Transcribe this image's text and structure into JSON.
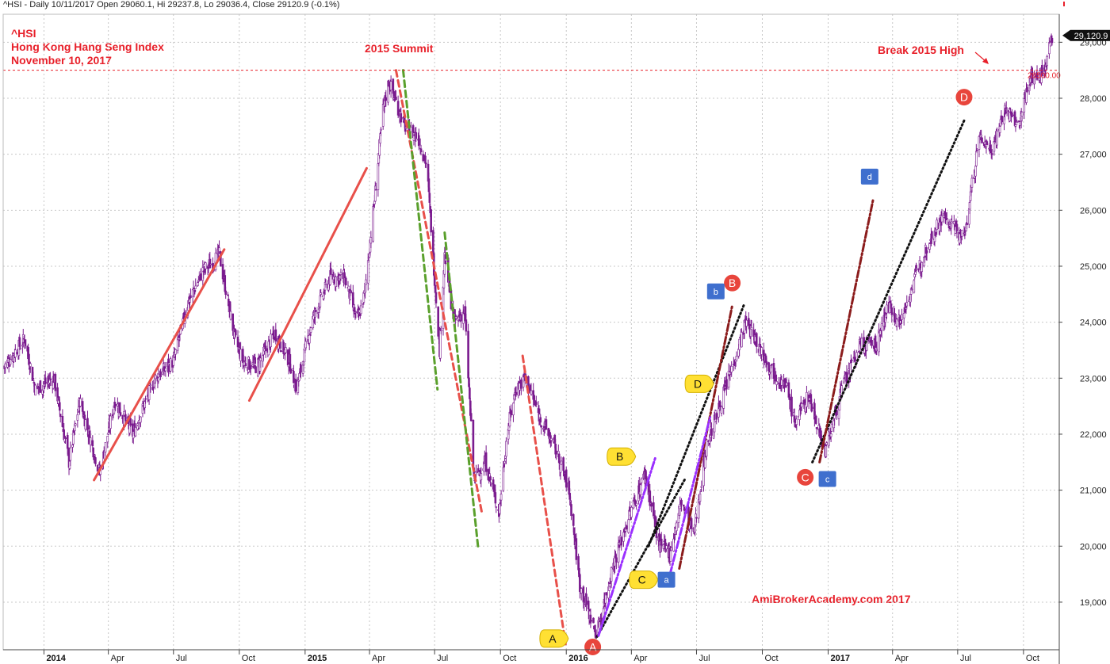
{
  "header": {
    "title": "^HSI - Daily 10/11/2017 Open 29060.1, Hi 29237.8, Lo 29036.4, Close 29120.9 (-0.1%)"
  },
  "annotations": {
    "symbol": "^HSI",
    "name": "Hong Kong Hang Seng Index",
    "date": "November 10, 2017",
    "summit": "2015 Summit",
    "break_high": "Break 2015 High",
    "watermark": "AmiBrokerAcademy.com  2017"
  },
  "colors": {
    "annotation": "#e8202a",
    "candle": "#7a1a8e",
    "candle_up": "#ffffff",
    "red_trend": "#e8504a",
    "green_trend": "#5aa02c",
    "black_trend": "#111111",
    "maroon_trend": "#8b1c1c",
    "violet_trend": "#9b30ff",
    "label_circle": "#e8453c",
    "label_bubble": "#ffe033",
    "label_square": "#3f6fce"
  },
  "chart_data": {
    "type": "candlestick",
    "ylim": [
      18150,
      29500
    ],
    "yticks": [
      19000,
      20000,
      21000,
      22000,
      23000,
      24000,
      25000,
      26000,
      27000,
      28000,
      29000
    ],
    "ytick_labels": [
      "19,000",
      "20,000",
      "21,000",
      "22,000",
      "23,000",
      "24,000",
      "25,000",
      "26,000",
      "27,000",
      "28,000",
      "29,000"
    ],
    "x_start": "2013-11-05",
    "x_end": "2017-11-20",
    "xticks": [
      {
        "date": "2014-01-01",
        "label": "2014",
        "major": true
      },
      {
        "date": "2014-04-01",
        "label": "Apr",
        "major": false
      },
      {
        "date": "2014-07-01",
        "label": "Jul",
        "major": false
      },
      {
        "date": "2014-10-01",
        "label": "Oct",
        "major": false
      },
      {
        "date": "2015-01-01",
        "label": "2015",
        "major": true
      },
      {
        "date": "2015-04-01",
        "label": "Apr",
        "major": false
      },
      {
        "date": "2015-07-01",
        "label": "Jul",
        "major": false
      },
      {
        "date": "2015-10-01",
        "label": "Oct",
        "major": false
      },
      {
        "date": "2016-01-01",
        "label": "2016",
        "major": true
      },
      {
        "date": "2016-04-01",
        "label": "Apr",
        "major": false
      },
      {
        "date": "2016-07-01",
        "label": "Jul",
        "major": false
      },
      {
        "date": "2016-10-01",
        "label": "Oct",
        "major": false
      },
      {
        "date": "2017-01-01",
        "label": "2017",
        "major": true
      },
      {
        "date": "2017-04-01",
        "label": "Apr",
        "major": false
      },
      {
        "date": "2017-07-01",
        "label": "Jul",
        "major": false
      },
      {
        "date": "2017-10-01",
        "label": "Oct",
        "major": false
      }
    ],
    "price_path": [
      [
        "2013-11-06",
        23200
      ],
      [
        "2013-12-05",
        23700
      ],
      [
        "2013-12-20",
        22800
      ],
      [
        "2014-01-15",
        23000
      ],
      [
        "2014-02-05",
        21500
      ],
      [
        "2014-02-20",
        22600
      ],
      [
        "2014-03-20",
        21300
      ],
      [
        "2014-04-10",
        22600
      ],
      [
        "2014-05-05",
        22000
      ],
      [
        "2014-06-05",
        23000
      ],
      [
        "2014-07-01",
        23300
      ],
      [
        "2014-07-20",
        24300
      ],
      [
        "2014-08-10",
        24900
      ],
      [
        "2014-09-03",
        25200
      ],
      [
        "2014-09-25",
        23700
      ],
      [
        "2014-10-06",
        23300
      ],
      [
        "2014-10-25",
        23200
      ],
      [
        "2014-11-20",
        23800
      ],
      [
        "2014-12-10",
        23300
      ],
      [
        "2014-12-20",
        22800
      ],
      [
        "2015-01-10",
        24000
      ],
      [
        "2015-02-05",
        24800
      ],
      [
        "2015-02-25",
        24800
      ],
      [
        "2015-03-15",
        24000
      ],
      [
        "2015-03-25",
        24500
      ],
      [
        "2015-04-08",
        26200
      ],
      [
        "2015-04-20",
        27800
      ],
      [
        "2015-04-28",
        28300
      ],
      [
        "2015-05-20",
        27500
      ],
      [
        "2015-06-08",
        27300
      ],
      [
        "2015-06-20",
        26800
      ],
      [
        "2015-07-08",
        23500
      ],
      [
        "2015-07-15",
        25200
      ],
      [
        "2015-07-28",
        24000
      ],
      [
        "2015-08-12",
        24200
      ],
      [
        "2015-08-25",
        21200
      ],
      [
        "2015-09-10",
        21500
      ],
      [
        "2015-09-29",
        20600
      ],
      [
        "2015-10-10",
        22000
      ],
      [
        "2015-10-22",
        22800
      ],
      [
        "2015-11-05",
        23000
      ],
      [
        "2015-11-25",
        22300
      ],
      [
        "2015-12-15",
        21800
      ],
      [
        "2016-01-05",
        21000
      ],
      [
        "2016-01-20",
        19300
      ],
      [
        "2016-02-12",
        18400
      ],
      [
        "2016-03-05",
        19600
      ],
      [
        "2016-03-25",
        20400
      ],
      [
        "2016-04-20",
        21300
      ],
      [
        "2016-05-10",
        20000
      ],
      [
        "2016-05-25",
        19900
      ],
      [
        "2016-06-10",
        20800
      ],
      [
        "2016-06-27",
        20200
      ],
      [
        "2016-07-15",
        21800
      ],
      [
        "2016-08-10",
        22800
      ],
      [
        "2016-09-08",
        24000
      ],
      [
        "2016-09-25",
        23600
      ],
      [
        "2016-10-12",
        23200
      ],
      [
        "2016-11-05",
        22800
      ],
      [
        "2016-11-15",
        22200
      ],
      [
        "2016-12-05",
        22700
      ],
      [
        "2016-12-28",
        21700
      ],
      [
        "2017-01-20",
        22800
      ],
      [
        "2017-02-15",
        23600
      ],
      [
        "2017-03-10",
        23600
      ],
      [
        "2017-03-25",
        24300
      ],
      [
        "2017-04-12",
        24000
      ],
      [
        "2017-04-30",
        24700
      ],
      [
        "2017-05-20",
        25400
      ],
      [
        "2017-06-10",
        25900
      ],
      [
        "2017-06-25",
        25700
      ],
      [
        "2017-07-10",
        25500
      ],
      [
        "2017-07-31",
        27300
      ],
      [
        "2017-08-18",
        27100
      ],
      [
        "2017-09-05",
        27800
      ],
      [
        "2017-09-25",
        27500
      ],
      [
        "2017-10-10",
        28400
      ],
      [
        "2017-10-25",
        28400
      ],
      [
        "2017-11-03",
        28700
      ],
      [
        "2017-11-10",
        29120
      ]
    ],
    "last_close": {
      "value": 29120.9,
      "label": "29,120.9"
    },
    "reference_line": {
      "value": 28500,
      "label": "28500.00",
      "color": "#e8202a"
    },
    "trendlines": [
      {
        "color": "red_trend",
        "dash": "solid",
        "from": [
          "2014-03-12",
          21180
        ],
        "to": [
          "2014-09-10",
          25300
        ]
      },
      {
        "color": "red_trend",
        "dash": "solid",
        "from": [
          "2014-10-15",
          22600
        ],
        "to": [
          "2015-03-28",
          26750
        ]
      },
      {
        "color": "red_trend",
        "dash": "dashed",
        "from": [
          "2015-05-08",
          28500
        ],
        "to": [
          "2015-09-05",
          20600
        ]
      },
      {
        "color": "red_trend",
        "dash": "dashed",
        "from": [
          "2015-11-01",
          23400
        ],
        "to": [
          "2015-12-31",
          18250
        ]
      },
      {
        "color": "green_trend",
        "dash": "dashed",
        "from": [
          "2015-05-18",
          28500
        ],
        "to": [
          "2015-07-05",
          22800
        ]
      },
      {
        "color": "green_trend",
        "dash": "dashed",
        "from": [
          "2015-07-15",
          25600
        ],
        "to": [
          "2015-08-31",
          19950
        ]
      },
      {
        "color": "black_trend",
        "dash": "dotted",
        "from": [
          "2016-02-05",
          18200
        ],
        "to": [
          "2016-06-15",
          21200
        ]
      },
      {
        "color": "black_trend",
        "dash": "dotted",
        "from": [
          "2016-04-25",
          20000
        ],
        "to": [
          "2016-09-05",
          24300
        ]
      },
      {
        "color": "black_trend",
        "dash": "dotted",
        "from": [
          "2016-12-10",
          21500
        ],
        "to": [
          "2017-07-10",
          27600
        ]
      },
      {
        "color": "maroon_trend",
        "dash": "dashdot",
        "from": [
          "2016-06-07",
          19600
        ],
        "to": [
          "2016-08-20",
          24300
        ]
      },
      {
        "color": "maroon_trend",
        "dash": "dashdot",
        "from": [
          "2016-12-20",
          21500
        ],
        "to": [
          "2017-03-05",
          26200
        ]
      },
      {
        "color": "violet_trend",
        "dash": "dashdot",
        "from": [
          "2016-02-15",
          18400
        ],
        "to": [
          "2016-05-05",
          21600
        ]
      },
      {
        "color": "violet_trend",
        "dash": "dashdot",
        "from": [
          "2016-05-25",
          19500
        ],
        "to": [
          "2016-07-20",
          22300
        ]
      }
    ],
    "markers": [
      {
        "text": "A",
        "shape": "bubble",
        "date": "2015-12-15",
        "value": 18350
      },
      {
        "text": "A",
        "shape": "circle",
        "date": "2016-02-07",
        "value": 18200
      },
      {
        "text": "B",
        "shape": "bubble",
        "date": "2016-03-18",
        "value": 21600
      },
      {
        "text": "B",
        "shape": "circle",
        "date": "2016-08-20",
        "value": 24700
      },
      {
        "text": "C",
        "shape": "bubble",
        "date": "2016-04-18",
        "value": 19400
      },
      {
        "text": "C",
        "shape": "circle",
        "date": "2016-11-30",
        "value": 21230
      },
      {
        "text": "D",
        "shape": "bubble",
        "date": "2016-07-05",
        "value": 22900
      },
      {
        "text": "D",
        "shape": "circle",
        "date": "2017-07-10",
        "value": 28020
      },
      {
        "text": "a",
        "shape": "square",
        "date": "2016-05-20",
        "value": 19400
      },
      {
        "text": "b",
        "shape": "square",
        "date": "2016-07-28",
        "value": 24550
      },
      {
        "text": "c",
        "shape": "square",
        "date": "2016-12-31",
        "value": 21200
      },
      {
        "text": "d",
        "shape": "square",
        "date": "2017-02-28",
        "value": 26600
      }
    ]
  }
}
